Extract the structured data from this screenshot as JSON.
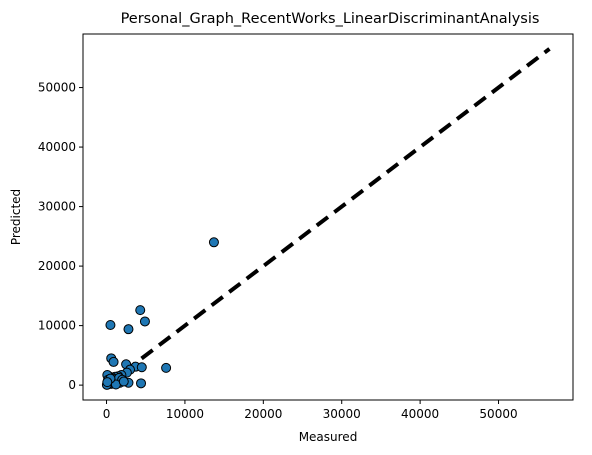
{
  "chart_data": {
    "type": "scatter",
    "title": "Personal_Graph_RecentWorks_LinearDiscriminantAnalysis",
    "xlabel": "Measured",
    "ylabel": "Predicted",
    "xlim": [
      -3000,
      59500
    ],
    "ylim": [
      -2500,
      59000
    ],
    "xticks": [
      0,
      10000,
      20000,
      30000,
      40000,
      50000
    ],
    "yticks": [
      0,
      10000,
      20000,
      30000,
      40000,
      50000
    ],
    "tick_labels": {
      "x": [
        "0",
        "10000",
        "20000",
        "30000",
        "40000",
        "50000"
      ],
      "y": [
        "0",
        "10000",
        "20000",
        "30000",
        "40000",
        "50000"
      ]
    },
    "reference_line": {
      "style": "dashed",
      "color": "#000000",
      "from": [
        0,
        0
      ],
      "to": [
        56500,
        56500
      ]
    },
    "marker_color": "#1f77b4",
    "marker_edge_color": "#000000",
    "grid": false,
    "points": [
      {
        "x": 13700,
        "y": 24000
      },
      {
        "x": 4300,
        "y": 12600
      },
      {
        "x": 4900,
        "y": 10700
      },
      {
        "x": 500,
        "y": 10100
      },
      {
        "x": 2800,
        "y": 9400
      },
      {
        "x": 7600,
        "y": 2900
      },
      {
        "x": 600,
        "y": 4500
      },
      {
        "x": 900,
        "y": 3900
      },
      {
        "x": 2500,
        "y": 3500
      },
      {
        "x": 3700,
        "y": 3100
      },
      {
        "x": 4500,
        "y": 3000
      },
      {
        "x": 3000,
        "y": 2600
      },
      {
        "x": 2600,
        "y": 2100
      },
      {
        "x": 1900,
        "y": 1700
      },
      {
        "x": 1500,
        "y": 1500
      },
      {
        "x": 1100,
        "y": 1400
      },
      {
        "x": 700,
        "y": 1300
      },
      {
        "x": 300,
        "y": 1500
      },
      {
        "x": 100,
        "y": 1700
      },
      {
        "x": 200,
        "y": 900
      },
      {
        "x": 400,
        "y": 600
      },
      {
        "x": 800,
        "y": 800
      },
      {
        "x": 1300,
        "y": 700
      },
      {
        "x": 1700,
        "y": 400
      },
      {
        "x": 1000,
        "y": 300
      },
      {
        "x": 600,
        "y": 200
      },
      {
        "x": 300,
        "y": 300
      },
      {
        "x": 150,
        "y": 100
      },
      {
        "x": 50,
        "y": 50
      },
      {
        "x": 900,
        "y": 1000
      },
      {
        "x": 1600,
        "y": 1200
      },
      {
        "x": 2000,
        "y": 900
      },
      {
        "x": 2800,
        "y": 400
      },
      {
        "x": 4400,
        "y": 300
      },
      {
        "x": 1200,
        "y": 100
      },
      {
        "x": 2200,
        "y": 600
      },
      {
        "x": 500,
        "y": 1100
      },
      {
        "x": 100,
        "y": 500
      }
    ]
  }
}
